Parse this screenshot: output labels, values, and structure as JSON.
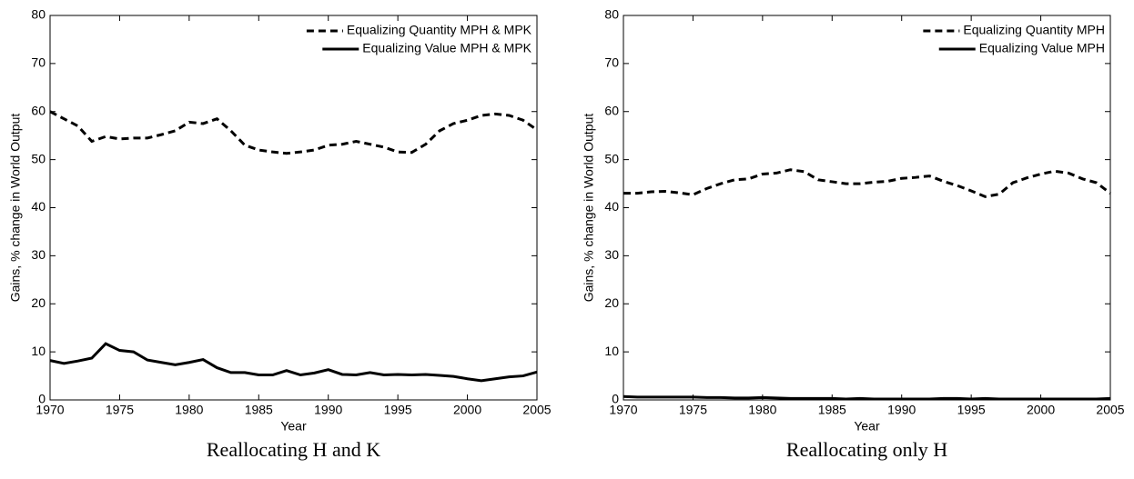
{
  "chart_data": [
    {
      "type": "line",
      "caption": "Reallocating H and K",
      "xlabel": "Year",
      "ylabel": "Gains, % change in World Output",
      "x": [
        1970,
        1971,
        1972,
        1973,
        1974,
        1975,
        1976,
        1977,
        1978,
        1979,
        1980,
        1981,
        1982,
        1983,
        1984,
        1985,
        1986,
        1987,
        1988,
        1989,
        1990,
        1991,
        1992,
        1993,
        1994,
        1995,
        1996,
        1997,
        1998,
        1999,
        2000,
        2001,
        2002,
        2003,
        2004,
        2005
      ],
      "series": [
        {
          "name": "Equalizing Quantity MPH & MPK",
          "color": "#000000",
          "line_style": "dashed",
          "values": [
            60,
            58.5,
            57,
            53.8,
            54.8,
            54.3,
            54.5,
            54.5,
            55.2,
            56,
            57.8,
            57.5,
            58.5,
            56,
            53,
            52,
            51.6,
            51.3,
            51.6,
            52,
            53,
            53.2,
            53.8,
            53.2,
            52.6,
            51.6,
            51.5,
            53.2,
            56,
            57.5,
            58.2,
            59.2,
            59.5,
            59.2,
            58.2,
            56.2
          ]
        },
        {
          "name": "Equalizing Value MPH & MPK",
          "color": "#000000",
          "line_style": "solid",
          "values": [
            8.2,
            7.6,
            8.1,
            8.7,
            11.7,
            10.3,
            10,
            8.3,
            7.8,
            7.3,
            7.8,
            8.4,
            6.7,
            5.7,
            5.7,
            5.2,
            5.2,
            6.1,
            5.2,
            5.6,
            6.3,
            5.3,
            5.2,
            5.7,
            5.2,
            5.3,
            5.2,
            5.3,
            5.1,
            4.9,
            4.4,
            4.0,
            4.4,
            4.8,
            5.0,
            5.8
          ]
        }
      ],
      "xlim": [
        1970,
        2005
      ],
      "xticks": [
        1970,
        1975,
        1980,
        1985,
        1990,
        1995,
        2000,
        2005
      ],
      "ylim": [
        0,
        80
      ],
      "yticks": [
        0,
        10,
        20,
        30,
        40,
        50,
        60,
        70,
        80
      ],
      "legend": "upper right"
    },
    {
      "type": "line",
      "caption": "Reallocating only H",
      "xlabel": "Year",
      "ylabel": "Gains, % change in World Output",
      "x": [
        1970,
        1971,
        1972,
        1973,
        1974,
        1975,
        1976,
        1977,
        1978,
        1979,
        1980,
        1981,
        1982,
        1983,
        1984,
        1985,
        1986,
        1987,
        1988,
        1989,
        1990,
        1991,
        1992,
        1993,
        1994,
        1995,
        1996,
        1997,
        1998,
        1999,
        2000,
        2001,
        2002,
        2003,
        2004,
        2005
      ],
      "series": [
        {
          "name": "Equalizing Quantity MPH",
          "color": "#000000",
          "line_style": "dashed",
          "values": [
            43,
            43,
            43.3,
            43.4,
            43.1,
            42.7,
            44,
            45,
            45.8,
            46,
            47,
            47.2,
            47.9,
            47.5,
            45.8,
            45.4,
            45,
            45,
            45.3,
            45.5,
            46.1,
            46.3,
            46.6,
            45.5,
            44.6,
            43.5,
            42.3,
            42.8,
            45.2,
            46.2,
            47,
            47.6,
            47.2,
            46,
            45.2,
            43
          ]
        },
        {
          "name": "Equalizing Value MPH",
          "color": "#000000",
          "line_style": "solid",
          "values": [
            0.7,
            0.6,
            0.6,
            0.6,
            0.6,
            0.6,
            0.5,
            0.5,
            0.4,
            0.4,
            0.5,
            0.4,
            0.3,
            0.3,
            0.3,
            0.3,
            0.2,
            0.3,
            0.2,
            0.2,
            0.2,
            0.2,
            0.2,
            0.3,
            0.3,
            0.2,
            0.3,
            0.2,
            0.2,
            0.2,
            0.2,
            0.2,
            0.2,
            0.2,
            0.2,
            0.3
          ]
        }
      ],
      "xlim": [
        1970,
        2005
      ],
      "xticks": [
        1970,
        1975,
        1980,
        1985,
        1990,
        1995,
        2000,
        2005
      ],
      "ylim": [
        0,
        80
      ],
      "yticks": [
        0,
        10,
        20,
        30,
        40,
        50,
        60,
        70,
        80
      ],
      "legend": "upper right"
    }
  ]
}
